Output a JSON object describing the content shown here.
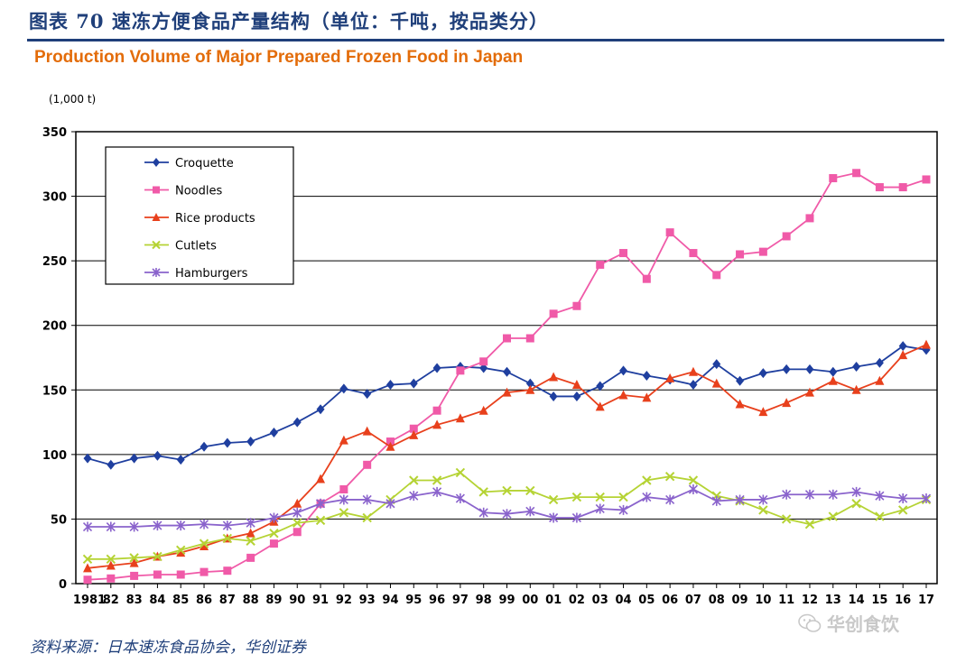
{
  "header": {
    "figure_title": "图表 70   速冻方便食品产量结构（单位：千吨，按品类分）",
    "chart_title": "Production Volume of Major Prepared Frozen Food in Japan"
  },
  "source": "资料来源：日本速冻食品协会，华创证券",
  "watermark": {
    "text": "华创食饮",
    "icon": "wechat-icon"
  },
  "chart_data": {
    "type": "line",
    "title": "Production Volume of Major Prepared Frozen Food in Japan",
    "unit": "(1,000 t)",
    "xlabel": "",
    "ylabel": "(1,000 t)",
    "ylim": [
      0,
      350
    ],
    "yticks": [
      0,
      50,
      100,
      150,
      200,
      250,
      300,
      350
    ],
    "grid": true,
    "legend_position": "top-left",
    "categories": [
      "1981",
      "82",
      "83",
      "84",
      "85",
      "86",
      "87",
      "88",
      "89",
      "90",
      "91",
      "92",
      "93",
      "94",
      "95",
      "96",
      "97",
      "98",
      "99",
      "00",
      "01",
      "02",
      "03",
      "04",
      "05",
      "06",
      "07",
      "08",
      "09",
      "10",
      "11",
      "12",
      "13",
      "14",
      "15",
      "16",
      "17"
    ],
    "series": [
      {
        "name": "Croquette",
        "color": "#1f3f9f",
        "marker": "diamond",
        "values": [
          97,
          92,
          97,
          99,
          96,
          106,
          109,
          110,
          117,
          125,
          135,
          151,
          147,
          154,
          155,
          167,
          168,
          167,
          164,
          155,
          145,
          145,
          153,
          165,
          161,
          158,
          154,
          170,
          157,
          163,
          166,
          166,
          164,
          168,
          171,
          184,
          181
        ]
      },
      {
        "name": "Noodles",
        "color": "#f05aa8",
        "marker": "square",
        "values": [
          3,
          4,
          6,
          7,
          7,
          9,
          10,
          20,
          31,
          40,
          62,
          73,
          92,
          110,
          120,
          134,
          165,
          172,
          190,
          190,
          209,
          215,
          247,
          256,
          236,
          272,
          256,
          239,
          255,
          257,
          269,
          283,
          314,
          318,
          307,
          307,
          313
        ]
      },
      {
        "name": "Rice products",
        "color": "#e8401c",
        "marker": "triangle",
        "values": [
          12,
          14,
          16,
          21,
          24,
          29,
          35,
          39,
          48,
          62,
          81,
          111,
          118,
          106,
          115,
          123,
          128,
          134,
          148,
          150,
          160,
          154,
          137,
          146,
          144,
          159,
          164,
          155,
          139,
          133,
          140,
          148,
          157,
          150,
          157,
          177,
          185
        ]
      },
      {
        "name": "Cutlets",
        "color": "#b5d334",
        "marker": "x",
        "values": [
          19,
          19,
          20,
          21,
          26,
          31,
          35,
          33,
          39,
          47,
          49,
          55,
          51,
          65,
          80,
          80,
          86,
          71,
          72,
          72,
          65,
          67,
          67,
          67,
          80,
          83,
          80,
          68,
          64,
          57,
          50,
          46,
          52,
          62,
          52,
          57,
          65
        ]
      },
      {
        "name": "Hamburgers",
        "color": "#8a63cc",
        "marker": "star",
        "values": [
          44,
          44,
          44,
          45,
          45,
          46,
          45,
          47,
          51,
          55,
          62,
          65,
          65,
          62,
          68,
          71,
          66,
          55,
          54,
          56,
          51,
          51,
          58,
          57,
          67,
          65,
          73,
          64,
          65,
          65,
          69,
          69,
          69,
          71,
          68,
          66,
          66
        ]
      }
    ]
  }
}
